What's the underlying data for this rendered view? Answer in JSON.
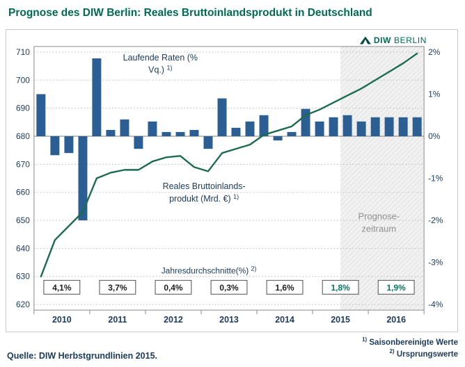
{
  "title": "Prognose des DIW Berlin: Reales Bruttoinlandsprodukt in Deutschland",
  "logo": {
    "diw": "DIW",
    "berlin": "BERLIN"
  },
  "source": "Quelle: DIW Herbstgrundlinien 2015.",
  "footnotes": [
    {
      "sup": "1)",
      "text": "Saisonbereinigte Werte"
    },
    {
      "sup": "2)",
      "text": "Ursprungswerte"
    }
  ],
  "colors": {
    "title": "#006b54",
    "bar": "#2b5e92",
    "line": "#1a6b52",
    "navy": "#1b3a5c",
    "forecast_label": "#8f8f8f",
    "forecast_value": "#007a5f",
    "box_text": "#1d1d1d",
    "logo": "#006b54"
  },
  "chart_data": {
    "type": "bar+line",
    "title": "Prognose des DIW Berlin: Reales Bruttoinlandsprodukt in Deutschland",
    "grid": "horizontal dotted",
    "x_quarters": [
      "2010Q1",
      "2010Q2",
      "2010Q3",
      "2010Q4",
      "2011Q1",
      "2011Q2",
      "2011Q3",
      "2011Q4",
      "2012Q1",
      "2012Q2",
      "2012Q3",
      "2012Q4",
      "2013Q1",
      "2013Q2",
      "2013Q3",
      "2013Q4",
      "2014Q1",
      "2014Q2",
      "2014Q3",
      "2014Q4",
      "2015Q1",
      "2015Q2",
      "2015Q3",
      "2015Q4",
      "2016Q1",
      "2016Q2",
      "2016Q3",
      "2016Q4"
    ],
    "years": [
      "2010",
      "2011",
      "2012",
      "2013",
      "2014",
      "2015",
      "2016"
    ],
    "left_axis": {
      "ticks": [
        710,
        700,
        690,
        680,
        670,
        660,
        650,
        640,
        630,
        620
      ],
      "ylim": [
        620,
        710
      ]
    },
    "right_axis": {
      "ticks": [
        "2%",
        "1%",
        "0%",
        "-1%",
        "-2%",
        "-3%",
        "-4%"
      ],
      "tick_values": [
        2,
        1,
        0,
        -1,
        -2,
        -3,
        -4
      ],
      "ylim_pct": [
        -4,
        2
      ]
    },
    "series": [
      {
        "name": "Laufende Raten (% Vq.)",
        "type": "bar",
        "axis": "right",
        "color": "#2b5e92",
        "values": [
          1.0,
          -0.45,
          -0.4,
          -2.0,
          1.85,
          0.15,
          0.4,
          -0.3,
          0.35,
          0.1,
          0.1,
          0.15,
          -0.3,
          0.9,
          0.2,
          0.35,
          0.5,
          -0.1,
          0.1,
          0.65,
          0.35,
          0.45,
          0.5,
          0.35,
          0.45,
          0.45,
          0.45,
          0.45
        ]
      },
      {
        "name": "Reales Bruttoinlandsprodukt (Mrd. €)",
        "type": "line",
        "axis": "left",
        "color": "#1a6b52",
        "values": [
          630,
          643,
          648,
          653,
          665,
          667,
          668,
          668,
          671,
          672.5,
          673,
          669,
          667.5,
          674,
          675.5,
          677,
          680.5,
          682,
          683.5,
          687.5,
          689.5,
          692,
          694.5,
          697,
          700,
          703,
          706,
          709.5
        ]
      }
    ],
    "bar_label": {
      "line1": "Laufende Raten (%",
      "line2": "Vq.)",
      "sup": "1)"
    },
    "line_label": {
      "line1": "Reales Bruttoinlands-",
      "line2": "produkt (Mrd. €)",
      "sup": "1)"
    },
    "forecast": {
      "label": [
        "Prognose-",
        "zeitraum"
      ],
      "start_index": 22
    },
    "annual_averages": {
      "label": "Jahresdurchschnitte(%)",
      "sup": "2)",
      "values": [
        "4,1%",
        "3,7%",
        "0,4%",
        "0,3%",
        "1,6%",
        "1,8%",
        "1,9%"
      ],
      "forecast_start_index": 5
    }
  }
}
